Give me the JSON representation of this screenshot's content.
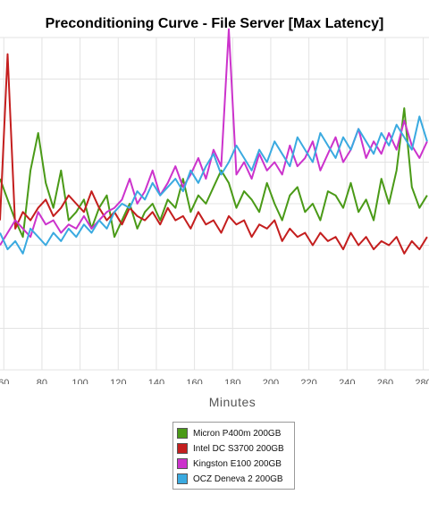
{
  "chart_data": {
    "type": "line",
    "title": "Preconditioning Curve - File Server [Max Latency]",
    "xlabel": "Minutes",
    "ylabel": "",
    "x_ticks": [
      60,
      80,
      100,
      120,
      140,
      160,
      180,
      200,
      220,
      240,
      260,
      280
    ],
    "xlim": [
      58,
      283
    ],
    "ylim": [
      0,
      8
    ],
    "grid": true,
    "legend_position": "bottom-center",
    "series": [
      {
        "name": "Micron P400m 200GB",
        "color": "#4a9a17",
        "x": [
          58,
          62,
          66,
          70,
          74,
          78,
          82,
          86,
          90,
          94,
          98,
          102,
          106,
          110,
          114,
          118,
          122,
          126,
          130,
          134,
          138,
          142,
          146,
          150,
          154,
          158,
          162,
          166,
          170,
          174,
          178,
          182,
          186,
          190,
          194,
          198,
          202,
          206,
          210,
          214,
          218,
          222,
          226,
          230,
          234,
          238,
          242,
          246,
          250,
          254,
          258,
          262,
          266,
          270,
          274,
          278,
          282
        ],
        "values": [
          4.6,
          4.1,
          3.6,
          3.2,
          4.8,
          5.7,
          4.5,
          3.9,
          4.8,
          3.6,
          3.8,
          4.1,
          3.4,
          3.9,
          4.2,
          3.2,
          3.6,
          4.0,
          3.4,
          3.8,
          4.0,
          3.6,
          4.1,
          3.9,
          4.6,
          3.8,
          4.2,
          4.0,
          4.4,
          4.8,
          4.5,
          3.9,
          4.3,
          4.1,
          3.8,
          4.5,
          4.0,
          3.6,
          4.2,
          4.4,
          3.8,
          4.0,
          3.6,
          4.3,
          4.2,
          3.9,
          4.5,
          3.8,
          4.1,
          3.6,
          4.6,
          4.0,
          4.8,
          6.3,
          4.4,
          3.9,
          4.2
        ]
      },
      {
        "name": "Intel DC S3700 200GB",
        "color": "#c41e1e",
        "x": [
          58,
          62,
          66,
          70,
          74,
          78,
          82,
          86,
          90,
          94,
          98,
          102,
          106,
          110,
          114,
          118,
          122,
          126,
          130,
          134,
          138,
          142,
          146,
          150,
          154,
          158,
          162,
          166,
          170,
          174,
          178,
          182,
          186,
          190,
          194,
          198,
          202,
          206,
          210,
          214,
          218,
          222,
          226,
          230,
          234,
          238,
          242,
          246,
          250,
          254,
          258,
          262,
          266,
          270,
          274,
          278,
          282
        ],
        "values": [
          3.6,
          7.6,
          3.4,
          3.8,
          3.6,
          3.9,
          4.1,
          3.7,
          3.9,
          4.2,
          4.0,
          3.8,
          4.3,
          3.9,
          3.6,
          3.8,
          3.5,
          3.9,
          3.7,
          3.6,
          3.8,
          3.5,
          3.9,
          3.6,
          3.7,
          3.4,
          3.8,
          3.5,
          3.6,
          3.3,
          3.7,
          3.5,
          3.6,
          3.2,
          3.5,
          3.4,
          3.6,
          3.1,
          3.4,
          3.2,
          3.3,
          3.0,
          3.3,
          3.1,
          3.2,
          2.9,
          3.3,
          3.0,
          3.2,
          2.9,
          3.1,
          3.0,
          3.2,
          2.8,
          3.1,
          2.9,
          3.2
        ]
      },
      {
        "name": "Kingston E100 200GB",
        "color": "#cc33cc",
        "x": [
          58,
          62,
          66,
          70,
          74,
          78,
          82,
          86,
          90,
          94,
          98,
          102,
          106,
          110,
          114,
          118,
          122,
          126,
          130,
          134,
          138,
          142,
          146,
          150,
          154,
          158,
          162,
          166,
          170,
          174,
          178,
          182,
          186,
          190,
          194,
          198,
          202,
          206,
          210,
          214,
          218,
          222,
          226,
          230,
          234,
          238,
          242,
          246,
          250,
          254,
          258,
          262,
          266,
          270,
          274,
          278,
          282
        ],
        "values": [
          3.0,
          3.3,
          3.6,
          3.4,
          3.2,
          3.8,
          3.5,
          3.6,
          3.3,
          3.5,
          3.4,
          3.7,
          3.4,
          3.6,
          3.8,
          3.9,
          4.1,
          4.6,
          4.0,
          4.3,
          4.8,
          4.2,
          4.5,
          4.9,
          4.4,
          4.7,
          5.1,
          4.6,
          5.3,
          4.9,
          8.2,
          4.7,
          5.0,
          4.6,
          5.2,
          4.8,
          5.0,
          4.7,
          5.4,
          4.9,
          5.1,
          5.5,
          4.8,
          5.2,
          5.6,
          5.0,
          5.3,
          5.8,
          5.1,
          5.5,
          5.2,
          5.7,
          5.3,
          6.0,
          5.4,
          5.1,
          5.5
        ]
      },
      {
        "name": "OCZ Deneva 2 200GB",
        "color": "#3aaae0",
        "x": [
          58,
          62,
          66,
          70,
          74,
          78,
          82,
          86,
          90,
          94,
          98,
          102,
          106,
          110,
          114,
          118,
          122,
          126,
          130,
          134,
          138,
          142,
          146,
          150,
          154,
          158,
          162,
          166,
          170,
          174,
          178,
          182,
          186,
          190,
          194,
          198,
          202,
          206,
          210,
          214,
          218,
          222,
          226,
          230,
          234,
          238,
          242,
          246,
          250,
          254,
          258,
          262,
          266,
          270,
          274,
          278,
          282
        ],
        "values": [
          3.3,
          2.9,
          3.1,
          2.8,
          3.4,
          3.2,
          3.0,
          3.3,
          3.1,
          3.4,
          3.2,
          3.5,
          3.3,
          3.6,
          3.4,
          3.8,
          4.0,
          3.9,
          4.3,
          4.1,
          4.5,
          4.2,
          4.4,
          4.6,
          4.3,
          4.8,
          4.5,
          4.9,
          5.2,
          4.7,
          5.0,
          5.4,
          5.1,
          4.8,
          5.3,
          5.0,
          5.5,
          5.2,
          4.9,
          5.6,
          5.3,
          5.0,
          5.7,
          5.4,
          5.1,
          5.6,
          5.3,
          5.8,
          5.5,
          5.2,
          5.7,
          5.4,
          5.9,
          5.6,
          5.3,
          6.1,
          5.5
        ]
      }
    ]
  }
}
